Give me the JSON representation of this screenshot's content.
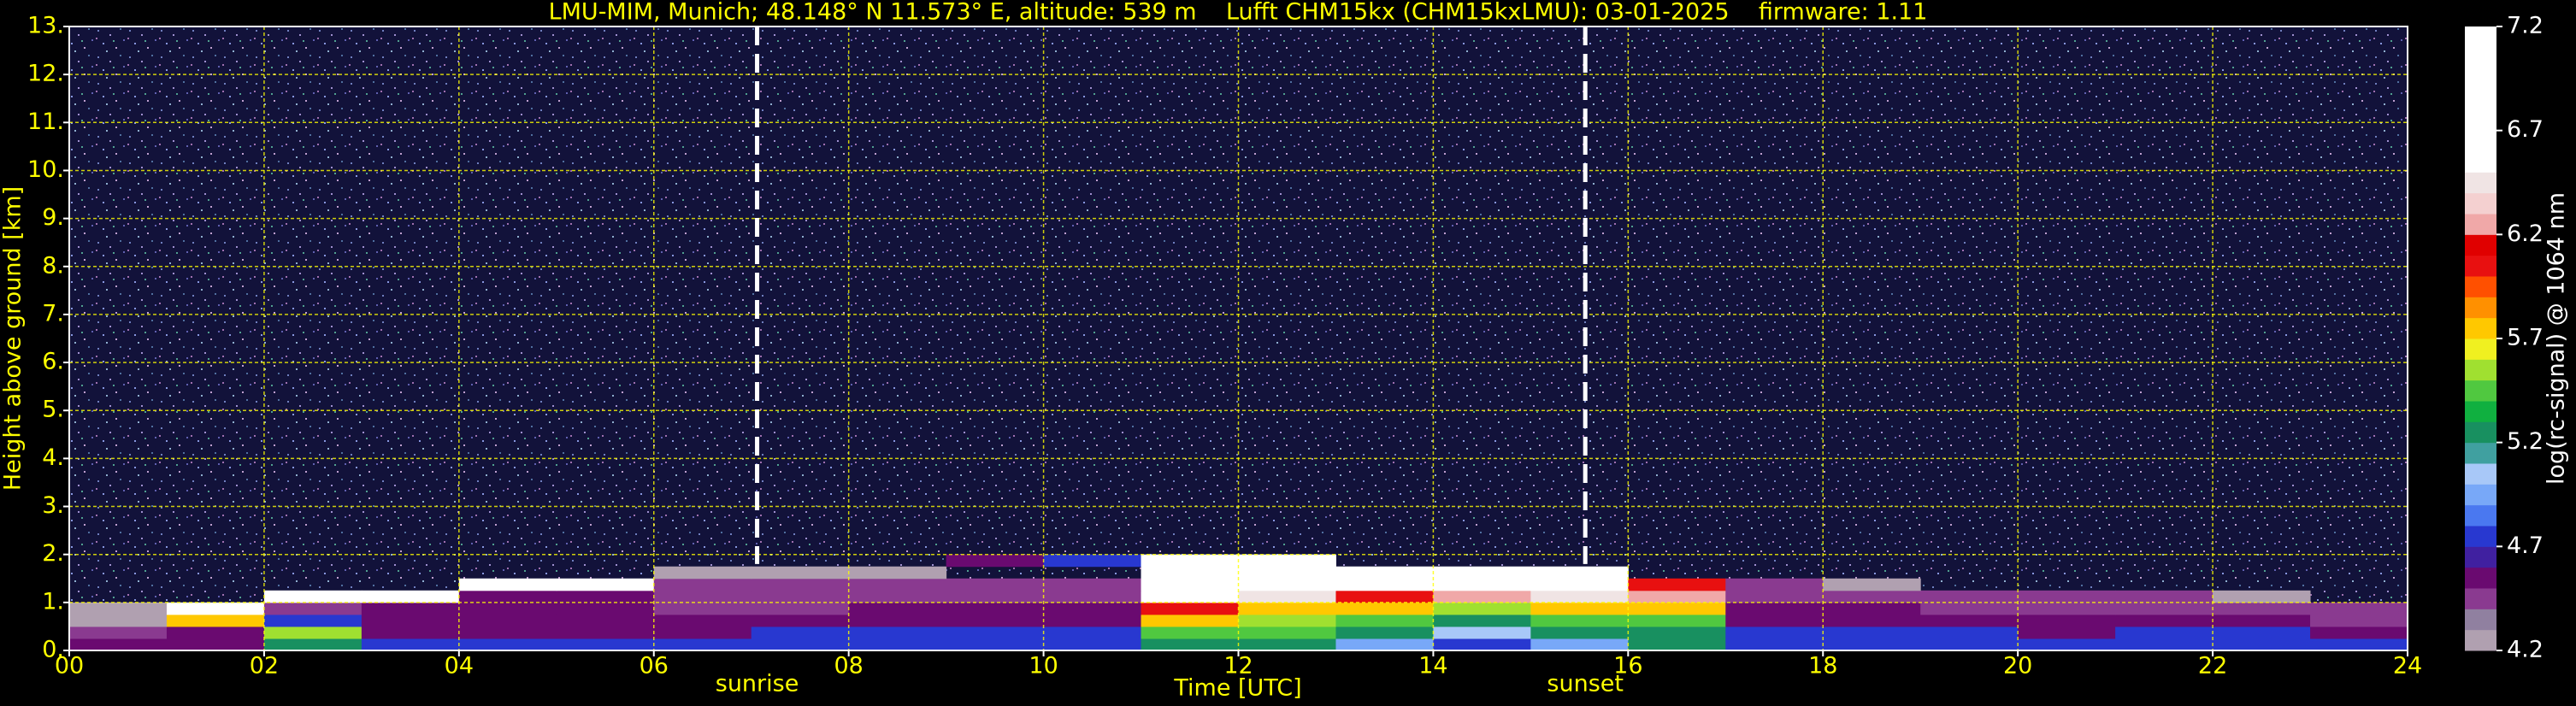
{
  "chart_data": {
    "type": "heatmap",
    "title": "LMU-MIM, Munich; 48.148° N 11.573° E, altitude: 539 m    Lufft CHM15kx (CHM15kxLMU): 03-01-2025    firmware: 1.11",
    "xlabel": "Time [UTC]",
    "ylabel": "Height above ground [km]",
    "colorbar_label": "log(rc-signal) @ 1064 nm",
    "xlim": [
      0,
      24
    ],
    "xticks": [
      {
        "value": 0,
        "label": "00"
      },
      {
        "value": 2,
        "label": "02"
      },
      {
        "value": 4,
        "label": "04"
      },
      {
        "value": 6,
        "label": "06"
      },
      {
        "value": 8,
        "label": "08"
      },
      {
        "value": 10,
        "label": "10"
      },
      {
        "value": 12,
        "label": "12"
      },
      {
        "value": 14,
        "label": "14"
      },
      {
        "value": 16,
        "label": "16"
      },
      {
        "value": 18,
        "label": "18"
      },
      {
        "value": 20,
        "label": "20"
      },
      {
        "value": 22,
        "label": "22"
      },
      {
        "value": 24,
        "label": "24"
      }
    ],
    "ylim": [
      0,
      13
    ],
    "yticks": [
      {
        "value": 0,
        "label": "0."
      },
      {
        "value": 1,
        "label": "1."
      },
      {
        "value": 2,
        "label": "2."
      },
      {
        "value": 3,
        "label": "3."
      },
      {
        "value": 4,
        "label": "4."
      },
      {
        "value": 5,
        "label": "5."
      },
      {
        "value": 6,
        "label": "6."
      },
      {
        "value": 7,
        "label": "7."
      },
      {
        "value": 8,
        "label": "8."
      },
      {
        "value": 9,
        "label": "9."
      },
      {
        "value": 10,
        "label": "10."
      },
      {
        "value": 11,
        "label": "11."
      },
      {
        "value": 12,
        "label": "12."
      },
      {
        "value": 13,
        "label": "13."
      }
    ],
    "grid": true,
    "grid_color": "#ffff00",
    "clim": [
      4.2,
      7.2
    ],
    "colorbar_ticks": [
      4.2,
      4.7,
      5.2,
      5.7,
      6.2,
      6.7,
      7.2
    ],
    "colors": [
      "#b0a0b0",
      "#9080a0",
      "#8a3a90",
      "#6a0a70",
      "#4020a0",
      "#2838d0",
      "#4a78f0",
      "#78a8f8",
      "#a8c8f8",
      "#40a0a0",
      "#189060",
      "#10b040",
      "#50c840",
      "#a0e030",
      "#f0f020",
      "#ffc800",
      "#ff9000",
      "#ff5000",
      "#e81010",
      "#e00000",
      "#f0a8a8",
      "#f4d0d0",
      "#f0e4e4",
      "#ffffff",
      "#ffffff",
      "#ffffff",
      "#ffffff",
      "#ffffff",
      "#ffffff",
      "#ffffff"
    ],
    "x_bins": [
      0,
      1,
      2,
      3,
      4,
      5,
      6,
      7,
      8,
      9,
      10,
      11,
      12,
      13,
      14,
      15,
      16,
      17,
      18,
      19,
      20,
      21,
      22,
      23,
      24
    ],
    "y_bins": [
      0,
      0.25,
      0.5,
      0.75,
      1,
      1.25,
      1.5,
      1.75,
      2
    ],
    "z": [
      [
        4.6,
        4.6,
        5.3,
        4.8,
        4.8,
        4.8,
        4.7,
        4.7,
        4.7,
        4.7,
        4.8,
        5.3,
        5.2,
        5.0,
        4.8,
        5.0,
        5.2,
        4.7,
        4.7,
        4.7,
        4.7,
        4.7,
        4.8,
        4.8
      ],
      [
        4.5,
        4.6,
        5.6,
        4.6,
        4.6,
        4.6,
        4.6,
        4.7,
        4.7,
        4.7,
        4.7,
        5.5,
        5.4,
        5.2,
        5.1,
        5.2,
        5.3,
        4.7,
        4.7,
        4.7,
        4.6,
        4.7,
        4.7,
        4.6
      ],
      [
        4.3,
        5.8,
        4.8,
        4.6,
        4.6,
        4.6,
        4.6,
        4.6,
        4.6,
        4.6,
        4.6,
        5.7,
        5.6,
        5.5,
        5.3,
        5.4,
        5.5,
        4.6,
        4.6,
        4.6,
        4.6,
        4.6,
        4.6,
        4.5
      ],
      [
        4.3,
        6.5,
        4.4,
        4.6,
        4.6,
        4.6,
        4.5,
        4.5,
        4.6,
        4.6,
        4.6,
        6.0,
        5.8,
        5.7,
        5.6,
        5.7,
        5.8,
        4.6,
        4.6,
        4.5,
        4.5,
        4.5,
        4.5,
        4.4
      ],
      [
        null,
        null,
        6.7,
        6.7,
        4.6,
        4.6,
        4.5,
        4.5,
        4.5,
        4.5,
        4.5,
        6.6,
        6.4,
        6.0,
        6.2,
        6.4,
        6.2,
        4.5,
        4.5,
        4.4,
        4.4,
        4.4,
        4.3,
        null
      ],
      [
        null,
        null,
        null,
        null,
        6.6,
        6.5,
        4.5,
        4.5,
        4.5,
        4.4,
        4.4,
        7.0,
        6.8,
        6.6,
        6.5,
        6.8,
        6.0,
        4.4,
        4.3,
        null,
        null,
        null,
        null,
        null
      ],
      [
        null,
        null,
        null,
        null,
        null,
        null,
        4.3,
        4.3,
        4.3,
        null,
        null,
        7.0,
        7.0,
        6.8,
        6.7,
        6.9,
        null,
        null,
        null,
        null,
        null,
        null,
        null,
        null
      ],
      [
        null,
        null,
        null,
        null,
        null,
        null,
        null,
        null,
        null,
        4.6,
        4.8,
        6.5,
        6.6,
        null,
        null,
        null,
        null,
        null,
        null,
        null,
        null,
        null,
        null,
        null
      ]
    ],
    "annotations": [
      {
        "text": "sunrise",
        "x": 7.06,
        "y_start": 1.8
      },
      {
        "text": "sunset",
        "x": 15.56,
        "y_start": 1.8
      }
    ]
  }
}
